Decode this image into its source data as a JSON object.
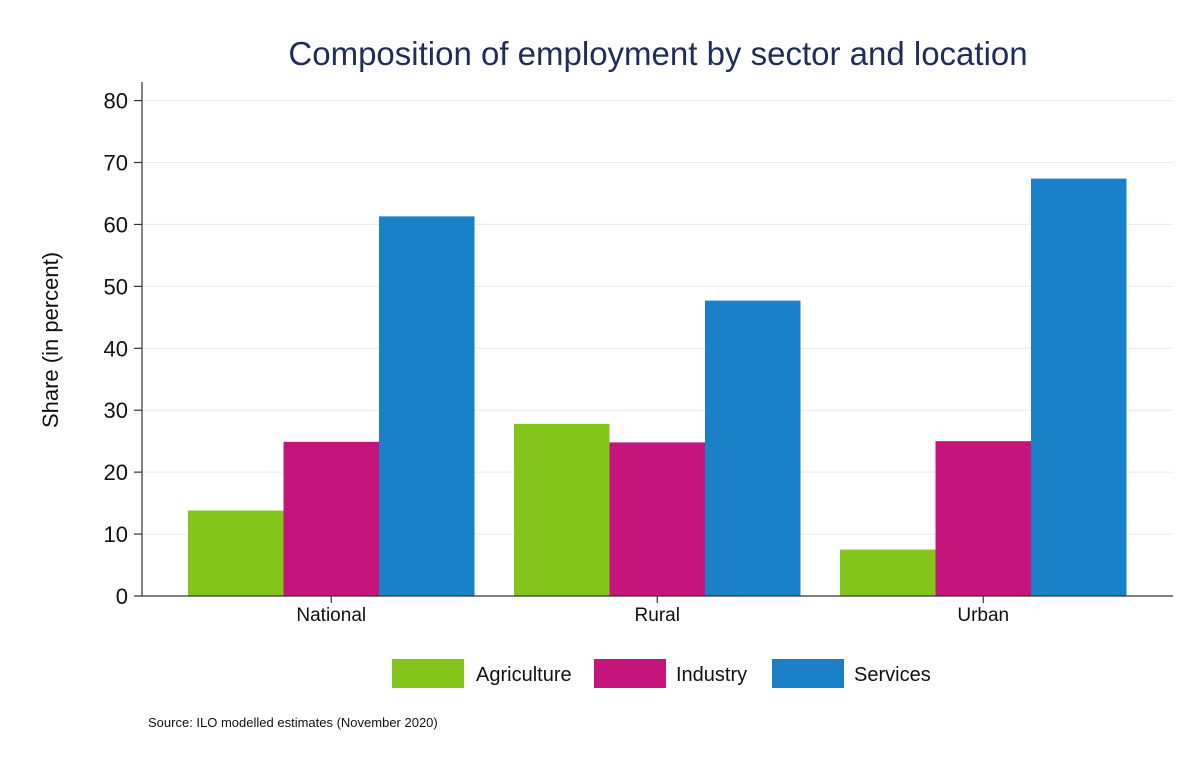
{
  "chart_data": {
    "type": "bar",
    "title": "Composition of employment by sector and location",
    "xlabel": "",
    "ylabel": "Share (in percent)",
    "ylim": [
      0,
      83
    ],
    "yticks": [
      0,
      10,
      20,
      30,
      40,
      50,
      60,
      70,
      80
    ],
    "categories": [
      "National",
      "Rural",
      "Urban"
    ],
    "series": [
      {
        "name": "Agriculture",
        "color": "#84c51c",
        "values": [
          13.8,
          27.8,
          7.5
        ]
      },
      {
        "name": "Industry",
        "color": "#c5157c",
        "values": [
          24.9,
          24.8,
          25.0
        ]
      },
      {
        "name": "Services",
        "color": "#1a80c7",
        "values": [
          61.3,
          47.7,
          67.4
        ]
      }
    ],
    "grid": true,
    "legend_position": "bottom",
    "source": "Source: ILO modelled estimates (November 2020)"
  }
}
